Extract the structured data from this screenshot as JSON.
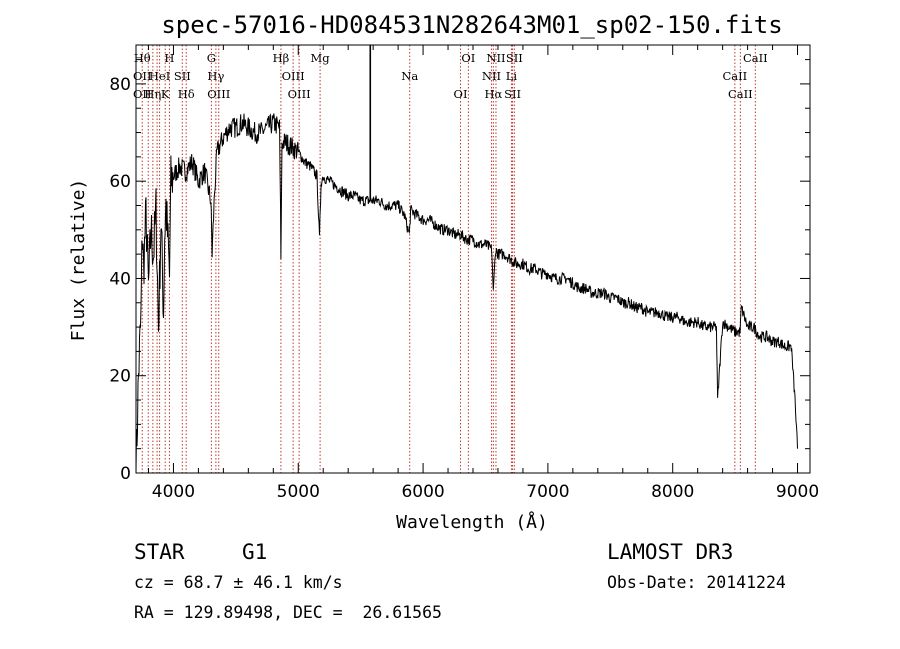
{
  "chart_data": {
    "type": "line",
    "title": "spec-57016-HD084531N282643M01_sp02-150.fits",
    "xlabel": "Wavelength (Å)",
    "ylabel": "Flux (relative)",
    "xlim": [
      3700,
      9100
    ],
    "ylim": [
      0,
      88
    ],
    "xticks": [
      4000,
      5000,
      6000,
      7000,
      8000,
      9000
    ],
    "yticks": [
      0,
      20,
      40,
      60,
      80
    ],
    "series": [
      {
        "name": "spectrum",
        "x": [
          3700,
          3720,
          3740,
          3750,
          3760,
          3780,
          3800,
          3820,
          3840,
          3860,
          3880,
          3900,
          3920,
          3930,
          3940,
          3960,
          3968,
          3980,
          4000,
          4050,
          4100,
          4150,
          4200,
          4250,
          4300,
          4310,
          4330,
          4350,
          4400,
          4450,
          4500,
          4550,
          4600,
          4650,
          4700,
          4750,
          4800,
          4850,
          4861,
          4870,
          4900,
          4950,
          5000,
          5050,
          5100,
          5150,
          5170,
          5183,
          5200,
          5250,
          5300,
          5350,
          5400,
          5450,
          5500,
          5550,
          5600,
          5650,
          5700,
          5750,
          5800,
          5850,
          5890,
          5900,
          5950,
          6000,
          6050,
          6100,
          6150,
          6200,
          6250,
          6300,
          6350,
          6400,
          6450,
          6500,
          6550,
          6563,
          6580,
          6600,
          6650,
          6700,
          6750,
          6800,
          6850,
          6900,
          6950,
          7000,
          7050,
          7100,
          7150,
          7200,
          7250,
          7300,
          7350,
          7400,
          7450,
          7500,
          7550,
          7600,
          7650,
          7700,
          7750,
          7800,
          7850,
          7900,
          7950,
          8000,
          8050,
          8100,
          8150,
          8200,
          8250,
          8300,
          8350,
          8360,
          8400,
          8450,
          8500,
          8540,
          8550,
          8600,
          8650,
          8700,
          8750,
          8800,
          8850,
          8900,
          8950,
          8980,
          9000
        ],
        "values": [
          0,
          20,
          32,
          50,
          42,
          53,
          38,
          50,
          45,
          54,
          30,
          52,
          33,
          49,
          55,
          45,
          40,
          60,
          61,
          63,
          62,
          64,
          60,
          62,
          56,
          45,
          58,
          66,
          69,
          71,
          71,
          72,
          71,
          70,
          70,
          71,
          72,
          71,
          45,
          68,
          68,
          67,
          66,
          64,
          63,
          61,
          48,
          60,
          61,
          60,
          59,
          58,
          57,
          57,
          56,
          56,
          56,
          56,
          55,
          55,
          55,
          53,
          49,
          54,
          53,
          52,
          52,
          51,
          50,
          50,
          49,
          49,
          48,
          48,
          47,
          47,
          46,
          37,
          46,
          45,
          45,
          44,
          43,
          43,
          42,
          42,
          41,
          41,
          40,
          40,
          40,
          39,
          38,
          38,
          37,
          37,
          37,
          36,
          36,
          35,
          35,
          34,
          34,
          33,
          33,
          33,
          32,
          32,
          32,
          31,
          31,
          31,
          30,
          30,
          30,
          15,
          31,
          30,
          29,
          29,
          34,
          30,
          30,
          28,
          28,
          27,
          27,
          26,
          26,
          15,
          5
        ]
      }
    ],
    "emission_line": {
      "x": 5577,
      "value": 88
    },
    "line_markers": [
      {
        "x": 3750,
        "labels": [
          "Hθ",
          "OII",
          "OII"
        ]
      },
      {
        "x": 3798,
        "labels": []
      },
      {
        "x": 3835,
        "labels": [
          "Hη"
        ]
      },
      {
        "x": 3869,
        "labels": []
      },
      {
        "x": 3889,
        "labels": [
          "HeI"
        ]
      },
      {
        "x": 3934,
        "labels": [
          "K"
        ]
      },
      {
        "x": 3968,
        "labels": [
          "H"
        ]
      },
      {
        "x": 4071,
        "labels": [
          "SII"
        ]
      },
      {
        "x": 4102,
        "labels": [
          "Hδ"
        ]
      },
      {
        "x": 4304,
        "labels": [
          "G"
        ]
      },
      {
        "x": 4340,
        "labels": [
          "Hγ"
        ]
      },
      {
        "x": 4363,
        "labels": [
          "OIII"
        ]
      },
      {
        "x": 4861,
        "labels": [
          "Hβ"
        ]
      },
      {
        "x": 4959,
        "labels": [
          "OIII"
        ]
      },
      {
        "x": 5007,
        "labels": [
          "OIII"
        ]
      },
      {
        "x": 5175,
        "labels": [
          "Mg"
        ]
      },
      {
        "x": 5893,
        "labels": [
          "Na"
        ]
      },
      {
        "x": 6300,
        "labels": [
          "OI"
        ]
      },
      {
        "x": 6363,
        "labels": [
          "OI"
        ]
      },
      {
        "x": 6548,
        "labels": [
          "NII"
        ]
      },
      {
        "x": 6563,
        "labels": [
          "Hα"
        ]
      },
      {
        "x": 6584,
        "labels": [
          "NII"
        ]
      },
      {
        "x": 6708,
        "labels": [
          "Li"
        ]
      },
      {
        "x": 6717,
        "labels": [
          "SII"
        ]
      },
      {
        "x": 6731,
        "labels": [
          "SII"
        ]
      },
      {
        "x": 8498,
        "labels": [
          "CaII"
        ]
      },
      {
        "x": 8542,
        "labels": [
          "CaII"
        ]
      },
      {
        "x": 8662,
        "labels": [
          "CaII"
        ]
      }
    ],
    "colors": {
      "spectrum": "#000000",
      "markers": "#c0392b"
    }
  },
  "info": {
    "class": "STAR",
    "subclass": "G1",
    "cz": "cz = 68.7 ± 46.1 km/s",
    "radec": "RA = 129.89498, DEC =  26.61565",
    "survey": "LAMOST DR3",
    "obsdate": "Obs-Date: 20141224"
  }
}
